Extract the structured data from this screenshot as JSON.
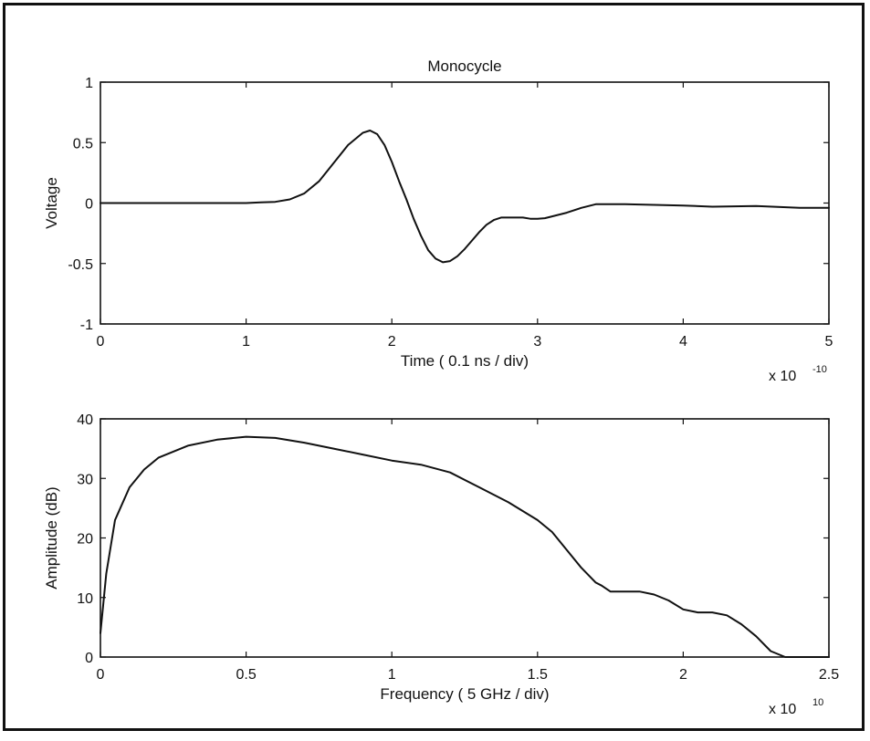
{
  "chart_data": [
    {
      "type": "line",
      "title": "Monocycle",
      "xlabel": "Time ( 0.1 ns / div)",
      "ylabel": "Voltage",
      "x_exponent_label": "x 10",
      "x_exponent": "-10",
      "xlim": [
        0,
        5
      ],
      "ylim": [
        -1,
        1
      ],
      "xticks": [
        0,
        1,
        2,
        3,
        4,
        5
      ],
      "xtick_labels": [
        "0",
        "1",
        "2",
        "3",
        "4",
        "5"
      ],
      "yticks": [
        -1,
        -0.5,
        0,
        0.5,
        1
      ],
      "ytick_labels": [
        "-1",
        "-0.5",
        "0",
        "0.5",
        "1"
      ],
      "grid": false,
      "color": "#111111",
      "series": [
        {
          "x": [
            0,
            0.5,
            1.0,
            1.1,
            1.2,
            1.3,
            1.4,
            1.5,
            1.6,
            1.7,
            1.8,
            1.85,
            1.9,
            1.95,
            2.0,
            2.05,
            2.1,
            2.15,
            2.2,
            2.25,
            2.3,
            2.35,
            2.4,
            2.45,
            2.5,
            2.55,
            2.6,
            2.65,
            2.7,
            2.75,
            2.8,
            2.85,
            2.9,
            2.95,
            3.0,
            3.05,
            3.1,
            3.2,
            3.3,
            3.4,
            3.5,
            3.6,
            3.8,
            4.0,
            4.2,
            4.5,
            4.8,
            5.0
          ],
          "y": [
            0,
            0,
            0.0,
            0.005,
            0.01,
            0.03,
            0.08,
            0.18,
            0.33,
            0.48,
            0.58,
            0.6,
            0.57,
            0.48,
            0.34,
            0.18,
            0.03,
            -0.13,
            -0.27,
            -0.39,
            -0.46,
            -0.49,
            -0.48,
            -0.44,
            -0.38,
            -0.31,
            -0.24,
            -0.18,
            -0.14,
            -0.12,
            -0.12,
            -0.12,
            -0.12,
            -0.13,
            -0.13,
            -0.125,
            -0.11,
            -0.08,
            -0.04,
            -0.01,
            -0.01,
            -0.01,
            -0.015,
            -0.02,
            -0.03,
            -0.025,
            -0.04,
            -0.04
          ]
        }
      ]
    },
    {
      "type": "line",
      "title": "",
      "xlabel": "Frequency ( 5 GHz / div)",
      "ylabel": "Amplitude (dB)",
      "x_exponent_label": "x 10",
      "x_exponent": "10",
      "xlim": [
        0,
        2.5
      ],
      "ylim": [
        0,
        40
      ],
      "xticks": [
        0,
        0.5,
        1,
        1.5,
        2,
        2.5
      ],
      "xtick_labels": [
        "0",
        "0.5",
        "1",
        "1.5",
        "2",
        "2.5"
      ],
      "yticks": [
        0,
        10,
        20,
        30,
        40
      ],
      "ytick_labels": [
        "0",
        "10",
        "20",
        "30",
        "40"
      ],
      "grid": false,
      "color": "#111111",
      "series": [
        {
          "x": [
            0,
            0.02,
            0.05,
            0.1,
            0.15,
            0.2,
            0.3,
            0.4,
            0.5,
            0.6,
            0.7,
            0.8,
            0.9,
            1.0,
            1.1,
            1.2,
            1.3,
            1.4,
            1.5,
            1.55,
            1.6,
            1.65,
            1.7,
            1.72,
            1.75,
            1.8,
            1.85,
            1.9,
            1.95,
            2.0,
            2.05,
            2.1,
            2.15,
            2.2,
            2.25,
            2.3,
            2.35,
            2.4,
            2.5
          ],
          "y": [
            4,
            14,
            23,
            28.5,
            31.5,
            33.5,
            35.5,
            36.5,
            37,
            36.8,
            36,
            35,
            34,
            33,
            32.3,
            31,
            28.5,
            26,
            23,
            21,
            18,
            15,
            12.5,
            12,
            11,
            11,
            11,
            10.5,
            9.5,
            8,
            7.5,
            7.5,
            7,
            5.5,
            3.5,
            1,
            0,
            0,
            0
          ]
        }
      ]
    }
  ]
}
